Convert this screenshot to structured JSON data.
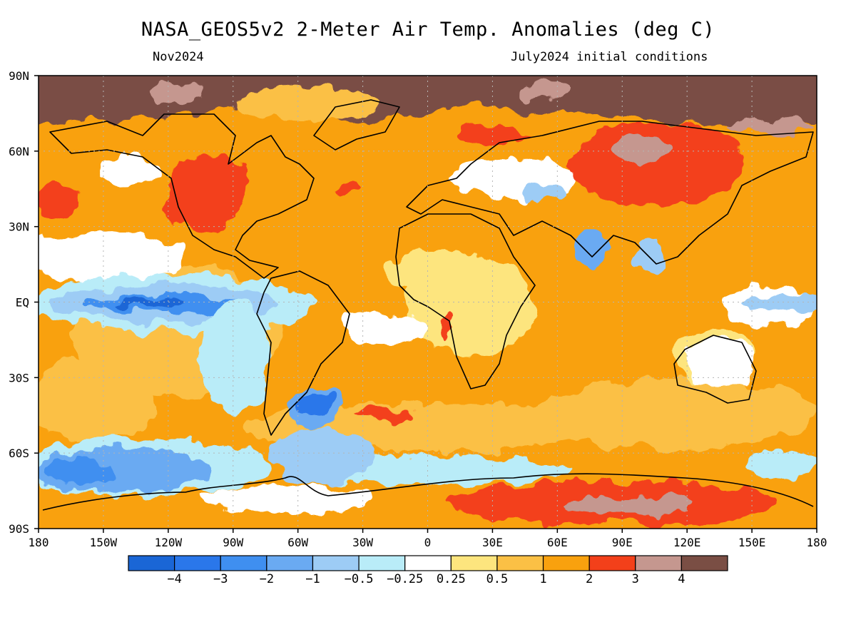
{
  "header": {
    "title": "NASA_GEOS5v2 2-Meter Air Temp. Anomalies (deg C)",
    "forecast_month": "Nov2024",
    "initial_conditions": "July2024 initial conditions"
  },
  "map": {
    "lat_labels": [
      "90N",
      "60N",
      "30N",
      "EQ",
      "30S",
      "60S",
      "90S"
    ],
    "lon_labels": [
      "180",
      "150W",
      "120W",
      "90W",
      "60W",
      "30W",
      "0",
      "30E",
      "60E",
      "90E",
      "120E",
      "150E",
      "180"
    ],
    "lon_range": [
      -180,
      180
    ],
    "lat_range": [
      -90,
      90
    ],
    "grid": "dotted",
    "projection": "equirectangular"
  },
  "colorbar": {
    "colors": [
      "#1a66d6",
      "#2a77ea",
      "#3f8ff0",
      "#6aaaf2",
      "#9dccf5",
      "#b9ecf8",
      "#ffffff",
      "#fde57e",
      "#fbc045",
      "#f9a10e",
      "#f3401a",
      "#c5978f",
      "#7a4e44"
    ],
    "labels": [
      "-4",
      "-3",
      "-2",
      "-1",
      "-0.5",
      "-0.25",
      "0.25",
      "0.5",
      "1",
      "2",
      "3",
      "4"
    ]
  },
  "chart_data": {
    "type": "heatmap",
    "variable": "2-Meter Air Temperature Anomaly",
    "units": "deg C",
    "levels": [
      -4,
      -3,
      -2,
      -1,
      -0.5,
      -0.25,
      0.25,
      0.5,
      1,
      2,
      3,
      4
    ],
    "regions": [
      {
        "lat": 82,
        "lon": 0,
        "anomaly": 4.5
      },
      {
        "lat": 60,
        "lon": 110,
        "anomaly": 3.5
      },
      {
        "lat": 50,
        "lon": -95,
        "anomaly": 2.5
      },
      {
        "lat": 0,
        "lon": -120,
        "anomaly": -2.5
      },
      {
        "lat": -60,
        "lon": -140,
        "anomaly": -1.5
      },
      {
        "lat": -78,
        "lon": 110,
        "anomaly": 3.5
      },
      {
        "lat": 20,
        "lon": 20,
        "anomaly": 1
      },
      {
        "lat": -40,
        "lon": -55,
        "anomaly": -2
      },
      {
        "lat": 30,
        "lon": -130,
        "anomaly": 0.2
      },
      {
        "lat": -25,
        "lon": 135,
        "anomaly": 0.4
      }
    ]
  }
}
